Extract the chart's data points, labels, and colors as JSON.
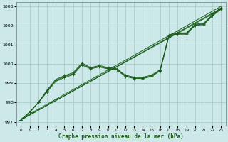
{
  "xlabel": "Graphe pression niveau de la mer (hPa)",
  "background_color": "#cce8e8",
  "grid_color": "#aacccc",
  "line_color": "#1a5c1a",
  "xlim": [
    -0.5,
    23.5
  ],
  "ylim": [
    996.8,
    1003.2
  ],
  "xticks": [
    0,
    1,
    2,
    3,
    4,
    5,
    6,
    7,
    8,
    9,
    10,
    11,
    12,
    13,
    14,
    15,
    16,
    17,
    18,
    19,
    20,
    21,
    22,
    23
  ],
  "yticks": [
    997,
    998,
    999,
    1000,
    1001,
    1002,
    1003
  ],
  "curved_series": [
    [
      997.1,
      997.5,
      998.0,
      998.55,
      999.1,
      999.3,
      999.45,
      999.95,
      999.75,
      999.85,
      999.75,
      999.7,
      999.35,
      999.25,
      999.25,
      999.35,
      999.65,
      1001.45,
      1001.55,
      1001.55,
      1002.0,
      1002.05,
      1002.5,
      1002.85
    ],
    [
      997.1,
      997.5,
      998.0,
      998.6,
      999.15,
      999.35,
      999.5,
      1000.0,
      999.78,
      999.88,
      999.78,
      999.72,
      999.38,
      999.28,
      999.28,
      999.38,
      999.68,
      1001.48,
      1001.58,
      1001.58,
      1002.03,
      1002.08,
      1002.53,
      1002.88
    ],
    [
      997.1,
      997.5,
      998.0,
      998.65,
      999.2,
      999.4,
      999.55,
      1000.05,
      999.82,
      999.92,
      999.82,
      999.76,
      999.42,
      999.32,
      999.32,
      999.42,
      999.72,
      1001.52,
      1001.62,
      1001.62,
      1002.07,
      1002.12,
      1002.57,
      1002.92
    ]
  ],
  "straight_series": [
    {
      "x0": 0,
      "y0": 997.1,
      "x1": 23,
      "y1": 1002.85
    },
    {
      "x0": 0,
      "y0": 997.1,
      "x1": 23,
      "y1": 1002.9
    },
    {
      "x0": 0,
      "y0": 997.15,
      "x1": 23,
      "y1": 1003.0
    }
  ]
}
